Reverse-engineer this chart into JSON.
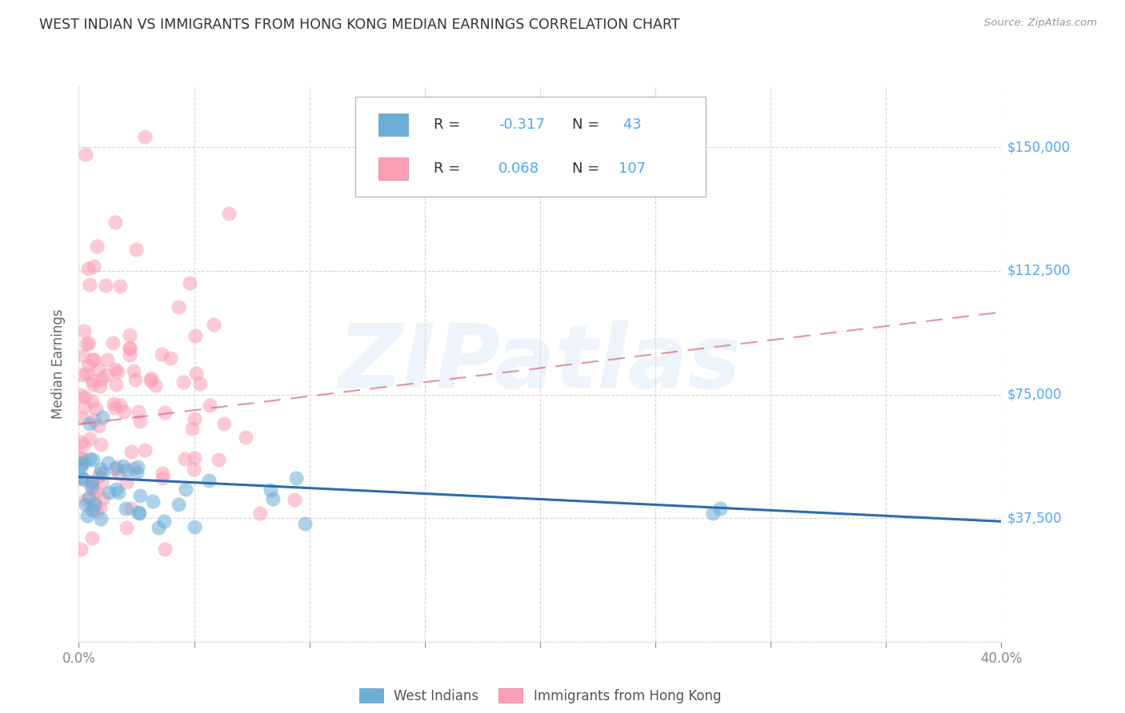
{
  "title": "WEST INDIAN VS IMMIGRANTS FROM HONG KONG MEDIAN EARNINGS CORRELATION CHART",
  "source": "Source: ZipAtlas.com",
  "ylabel": "Median Earnings",
  "watermark": "ZIPatlas",
  "xlim": [
    0.0,
    0.4
  ],
  "ylim": [
    0,
    168750
  ],
  "yticks": [
    0,
    37500,
    75000,
    112500,
    150000
  ],
  "ytick_labels": [
    "",
    "$37,500",
    "$75,000",
    "$112,500",
    "$150,000"
  ],
  "xticks": [
    0.0,
    0.05,
    0.1,
    0.15,
    0.2,
    0.25,
    0.3,
    0.35,
    0.4
  ],
  "xtick_labels": [
    "0.0%",
    "",
    "",
    "",
    "",
    "",
    "",
    "",
    "40.0%"
  ],
  "west_indian_color": "#6baed6",
  "hk_color": "#fa9fb5",
  "west_indian_line_color": "#2b6cb0",
  "hk_line_color": "#d4708a",
  "background_color": "#ffffff",
  "grid_color": "#cccccc",
  "title_color": "#333333",
  "axis_label_color": "#666666",
  "right_label_color": "#4da6ff",
  "legend_text_color": "#333333",
  "legend_value_color": "#4da6ff",
  "legend_border_color": "#bbbbbb",
  "source_color": "#999999",
  "seed": 42,
  "wi_trend_y0": 50000,
  "wi_trend_y1": 36500,
  "hk_trend_y0": 66000,
  "hk_trend_y1": 100000
}
